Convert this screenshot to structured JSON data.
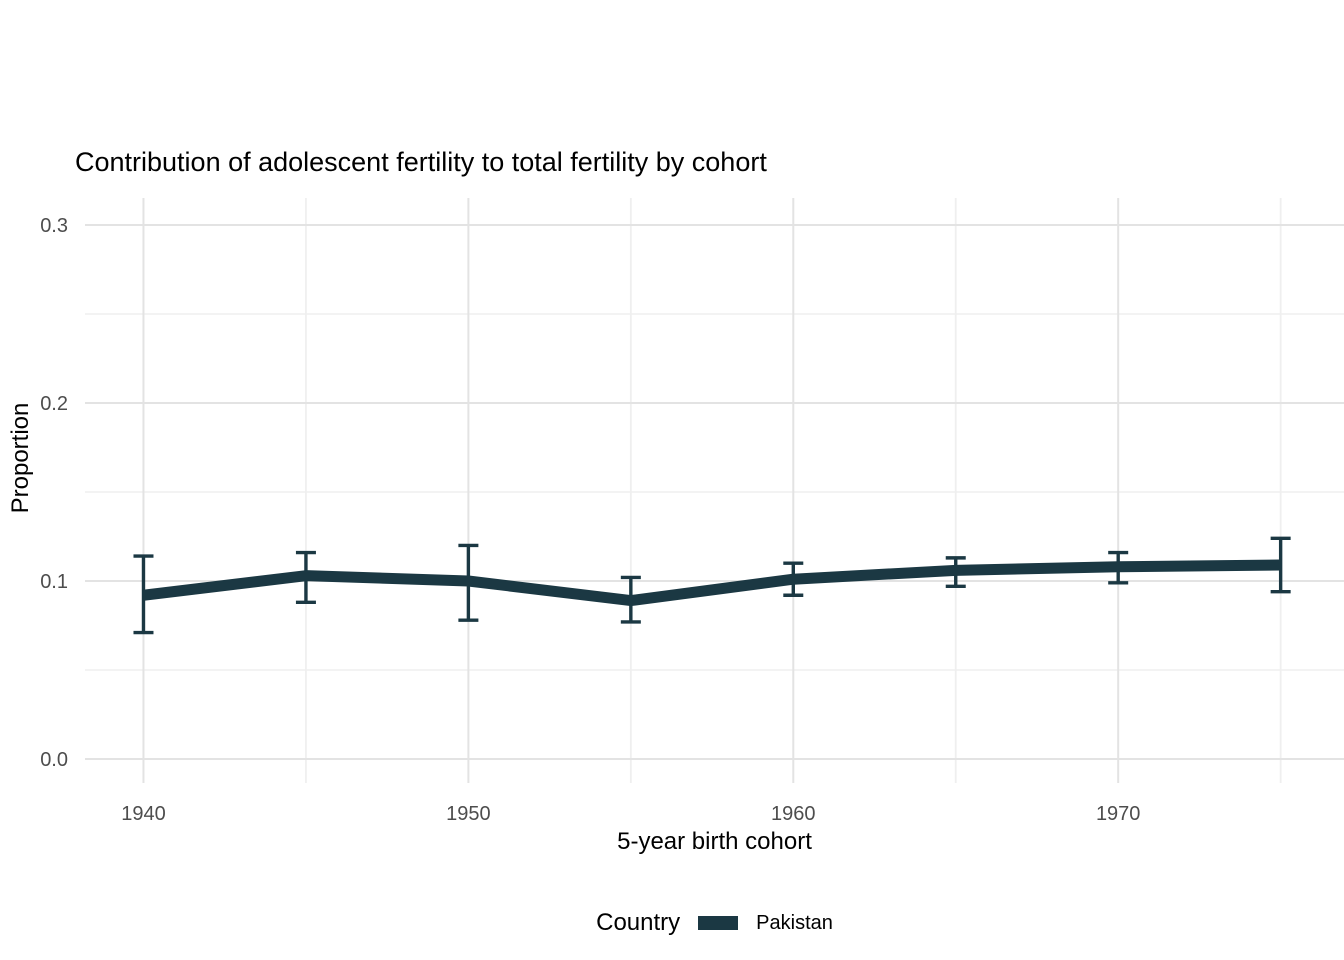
{
  "chart_data": {
    "type": "line",
    "title": "Contribution of adolescent fertility to total fertility by cohort",
    "xlabel": "5-year birth cohort",
    "ylabel": "Proportion",
    "legend": {
      "title": "Country",
      "position": "bottom"
    },
    "grid": true,
    "x": [
      1940,
      1945,
      1950,
      1955,
      1960,
      1965,
      1970,
      1975
    ],
    "series": [
      {
        "name": "Pakistan",
        "color": "#1b3843",
        "values": [
          0.092,
          0.103,
          0.1,
          0.089,
          0.101,
          0.106,
          0.108,
          0.109
        ],
        "ci_lower": [
          0.071,
          0.088,
          0.078,
          0.077,
          0.092,
          0.097,
          0.099,
          0.094
        ],
        "ci_upper": [
          0.114,
          0.116,
          0.12,
          0.102,
          0.11,
          0.113,
          0.116,
          0.124
        ]
      }
    ],
    "x_ticks": [
      1940,
      1950,
      1960,
      1970
    ],
    "x_minor_ticks": [
      1945,
      1955,
      1965,
      1975
    ],
    "y_ticks": [
      "0.0",
      "0.1",
      "0.2",
      "0.3"
    ],
    "y_tick_values": [
      0.0,
      0.1,
      0.2,
      0.3
    ],
    "y_minor_ticks": [
      0.05,
      0.15,
      0.25
    ],
    "xlim": [
      1938.2,
      1976.95
    ],
    "ylim": [
      -0.0135,
      0.3152
    ]
  },
  "colors": {
    "background": "#ffffff",
    "grid_major": "#e3e3e3",
    "grid_minor": "#efefef",
    "tick_text": "#4d4d4d",
    "title_text": "#000000"
  }
}
